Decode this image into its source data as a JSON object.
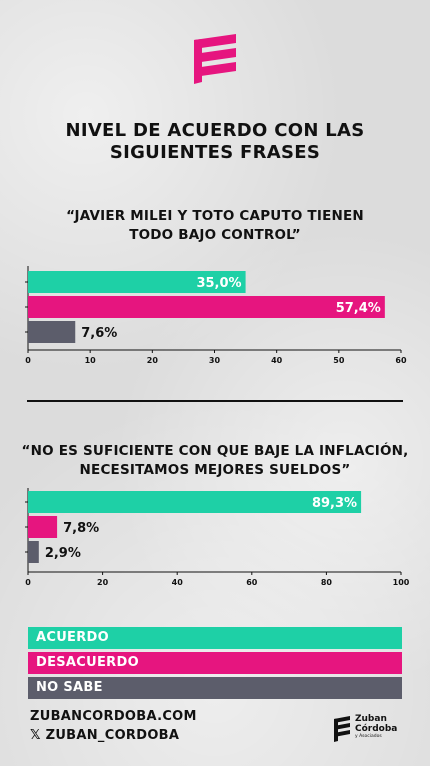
{
  "title_lines": [
    "NIVEL DE ACUERDO CON LAS",
    "SIGUIENTES FRASES"
  ],
  "colors": {
    "acuerdo": "#1ed0a6",
    "desacuerdo": "#e6157f",
    "no_sabe": "#5c5d6b"
  },
  "chart_data": [
    {
      "type": "bar",
      "orientation": "horizontal",
      "title_lines": [
        "“JAVIER MILEI Y TOTO CAPUTO TIENEN",
        "TODO BAJO CONTROL”"
      ],
      "categories": [
        "ACUERDO",
        "DESACUERDO",
        "NO SABE"
      ],
      "values": [
        35.0,
        57.4,
        7.6
      ],
      "value_labels": [
        "35,0%",
        "57,4%",
        "7,6%"
      ],
      "xlim": [
        0,
        60
      ],
      "ticks": [
        0,
        10,
        20,
        30,
        40,
        50,
        60
      ],
      "tick_labels": [
        "0",
        "10",
        "20",
        "30",
        "40",
        "50",
        "60"
      ]
    },
    {
      "type": "bar",
      "orientation": "horizontal",
      "title_lines": [
        "“NO ES SUFICIENTE CON QUE BAJE LA INFLACIÓN,",
        "NECESITAMOS MEJORES SUELDOS”"
      ],
      "categories": [
        "ACUERDO",
        "DESACUERDO",
        "NO SABE"
      ],
      "values": [
        89.3,
        7.8,
        2.9
      ],
      "value_labels": [
        "89,3%",
        "7,8%",
        "2,9%"
      ],
      "xlim": [
        0,
        100
      ],
      "ticks": [
        0,
        20,
        40,
        60,
        80,
        100
      ],
      "tick_labels": [
        "0",
        "20",
        "40",
        "60",
        "80",
        "100"
      ]
    }
  ],
  "legend": [
    {
      "label": "ACUERDO",
      "color": "#1ed0a6"
    },
    {
      "label": "DESACUERDO",
      "color": "#e6157f"
    },
    {
      "label": "NO SABE",
      "color": "#5c5d6b"
    }
  ],
  "footer": {
    "website": "ZUBANCORDOBA.COM",
    "social": "𝕏 ZUBAN_CORDOBA"
  },
  "brand": {
    "line1": "Zuban",
    "line2": "Córdoba",
    "line3": "y Asociados"
  }
}
